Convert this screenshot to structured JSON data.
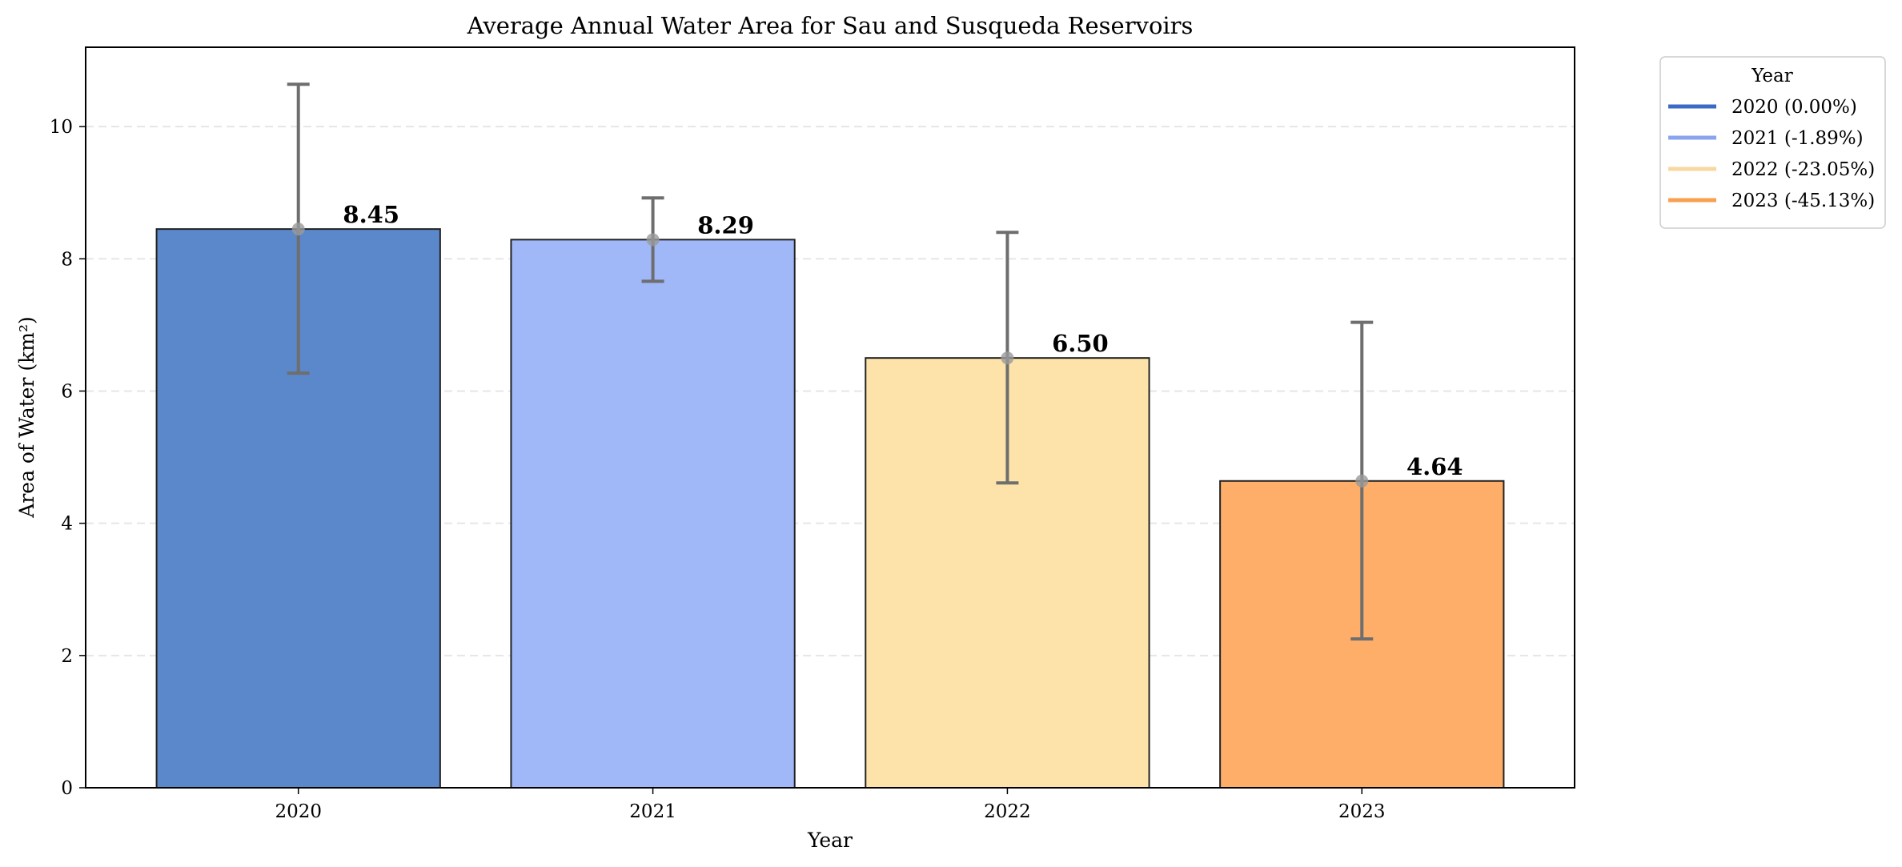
{
  "chart_data": {
    "type": "bar",
    "title": "Average Annual Water Area for Sau and Susqueda Reservoirs",
    "xlabel": "Year",
    "ylabel": "Area of Water (km²)",
    "categories": [
      "2020",
      "2021",
      "2022",
      "2023"
    ],
    "values": [
      8.45,
      8.29,
      6.5,
      4.64
    ],
    "value_labels": [
      "8.45",
      "8.29",
      "6.50",
      "4.64"
    ],
    "error_low": [
      6.27,
      7.66,
      4.61,
      2.25
    ],
    "error_high": [
      10.64,
      8.92,
      8.4,
      7.04
    ],
    "colors": [
      "#5b87cb",
      "#a0b7f8",
      "#fde3a9",
      "#feae69"
    ],
    "legend_colors": [
      "#3c6bc6",
      "#8aa5ee",
      "#f7d8a0",
      "#f8a04e"
    ],
    "ylim": [
      0,
      11.2
    ],
    "yticks": [
      0,
      2,
      4,
      6,
      8,
      10
    ],
    "grid": "y-dashed",
    "legend": {
      "title": "Year",
      "placement": "outside-top-right",
      "entries": [
        "2020 (0.00%)",
        "2021 (-1.89%)",
        "2022 (-23.05%)",
        "2023 (-45.13%)"
      ]
    }
  }
}
